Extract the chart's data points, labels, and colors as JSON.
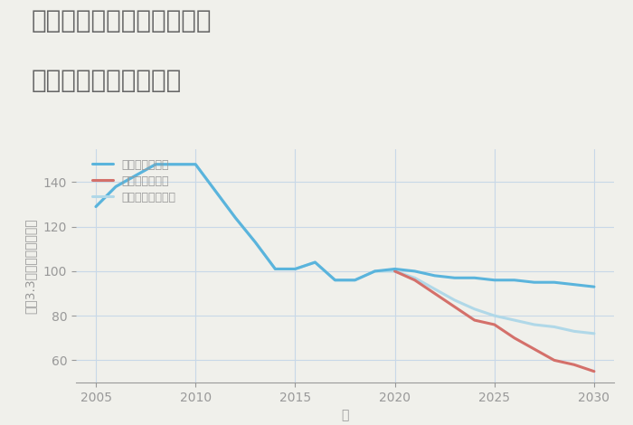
{
  "title_line1": "兵庫県豊岡市但東町木村の",
  "title_line2": "中古戸建ての価格推移",
  "xlabel": "年",
  "ylabel": "坪（3.3㎡）単価（万円）",
  "background_color": "#f0f0eb",
  "plot_bg_color": "#f0f0eb",
  "ylim": [
    50,
    155
  ],
  "xlim": [
    2004,
    2031
  ],
  "yticks": [
    60,
    80,
    100,
    120,
    140
  ],
  "xticks": [
    2005,
    2010,
    2015,
    2020,
    2025,
    2030
  ],
  "good_scenario": {
    "label": "グッドシナリオ",
    "color": "#5ab4dc",
    "linewidth": 2.2,
    "x": [
      2005,
      2006,
      2007,
      2008,
      2009,
      2010,
      2011,
      2012,
      2013,
      2014,
      2015,
      2016,
      2017,
      2018,
      2019,
      2020,
      2021,
      2022,
      2023,
      2024,
      2025,
      2026,
      2027,
      2028,
      2029,
      2030
    ],
    "y": [
      129,
      138,
      143,
      148,
      148,
      148,
      136,
      124,
      113,
      101,
      101,
      104,
      96,
      96,
      100,
      101,
      100,
      98,
      97,
      97,
      96,
      96,
      95,
      95,
      94,
      93
    ]
  },
  "bad_scenario": {
    "label": "バッドシナリオ",
    "color": "#d4706a",
    "linewidth": 2.2,
    "x": [
      2020,
      2021,
      2022,
      2023,
      2024,
      2025,
      2026,
      2027,
      2028,
      2029,
      2030
    ],
    "y": [
      100,
      96,
      90,
      84,
      78,
      76,
      70,
      65,
      60,
      58,
      55
    ]
  },
  "normal_scenario": {
    "label": "ノーマルシナリオ",
    "color": "#b0d8e8",
    "linewidth": 2.2,
    "x": [
      2005,
      2006,
      2007,
      2008,
      2009,
      2010,
      2011,
      2012,
      2013,
      2014,
      2015,
      2016,
      2017,
      2018,
      2019,
      2020,
      2021,
      2022,
      2023,
      2024,
      2025,
      2026,
      2027,
      2028,
      2029,
      2030
    ],
    "y": [
      129,
      138,
      143,
      148,
      148,
      148,
      136,
      124,
      113,
      101,
      101,
      104,
      96,
      96,
      100,
      100,
      97,
      92,
      87,
      83,
      80,
      78,
      76,
      75,
      73,
      72
    ]
  },
  "title_color": "#666666",
  "axis_color": "#999999",
  "grid_color": "#c8d8e8",
  "title_fontsize": 20,
  "axis_fontsize": 10,
  "legend_fontsize": 9
}
